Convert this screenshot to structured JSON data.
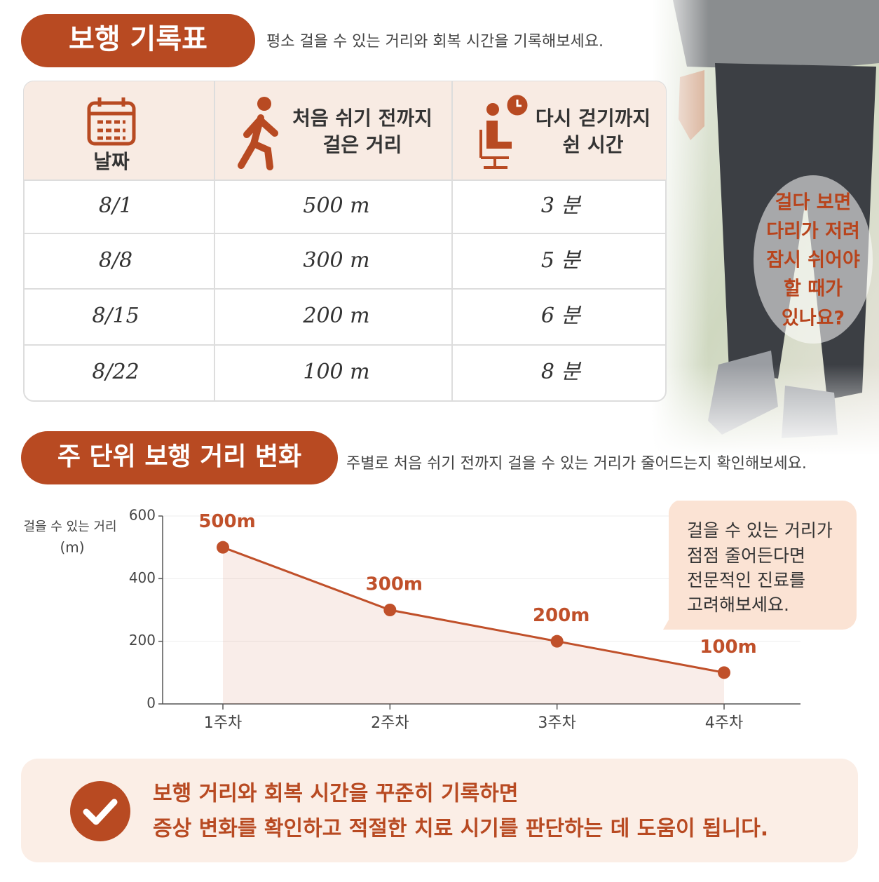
{
  "header": {
    "title": "보행 기록표",
    "subtitle": "평소 걸을 수 있는 거리와 회복 시간을 기록해보세요."
  },
  "table": {
    "columns": [
      [
        "날짜"
      ],
      [
        "처음 쉬기 전까지",
        "걸은 거리"
      ],
      [
        "다시 걷기까지",
        "쉰 시간"
      ]
    ],
    "rows": [
      [
        "8/1",
        "500 m",
        "3 분"
      ],
      [
        "8/8",
        "300 m",
        "5 분"
      ],
      [
        "8/15",
        "200 m",
        "6 분"
      ],
      [
        "8/22",
        "100 m",
        "8 분"
      ]
    ]
  },
  "side_note": [
    "걸다 보면",
    "다리가 저려",
    "잠시 쉬어야",
    "할 때가",
    "있나요?"
  ],
  "section2": {
    "title": "주 단위 보행 거리 변화",
    "subtitle": "주별로 처음 쉬기 전까지 걸을 수 있는 거리가 줄어드는지 확인해보세요."
  },
  "chart_data": {
    "type": "line",
    "y_label": [
      "걸을 수 있는 거리",
      "(m)"
    ],
    "categories": [
      "1주차",
      "2주차",
      "3주차",
      "4주차"
    ],
    "values": [
      500,
      300,
      200,
      100
    ],
    "value_labels": [
      "500m",
      "300m",
      "200m",
      "100m"
    ],
    "color": "#c0502a",
    "ylim": [
      0,
      600
    ],
    "yticks": [
      0,
      200,
      400,
      600
    ],
    "grid": true,
    "callout": [
      "걸을 수 있는 거리가",
      "점점 줄어든다면",
      "전문적인 진료를",
      "고려해보세요."
    ]
  },
  "footer": {
    "lines": [
      "보행 거리와 회복 시간을 꾸준히 기록하면",
      "증상 변화를 확인하고 적절한 치료 시기를 판단하는 데 도움이 됩니다."
    ]
  }
}
